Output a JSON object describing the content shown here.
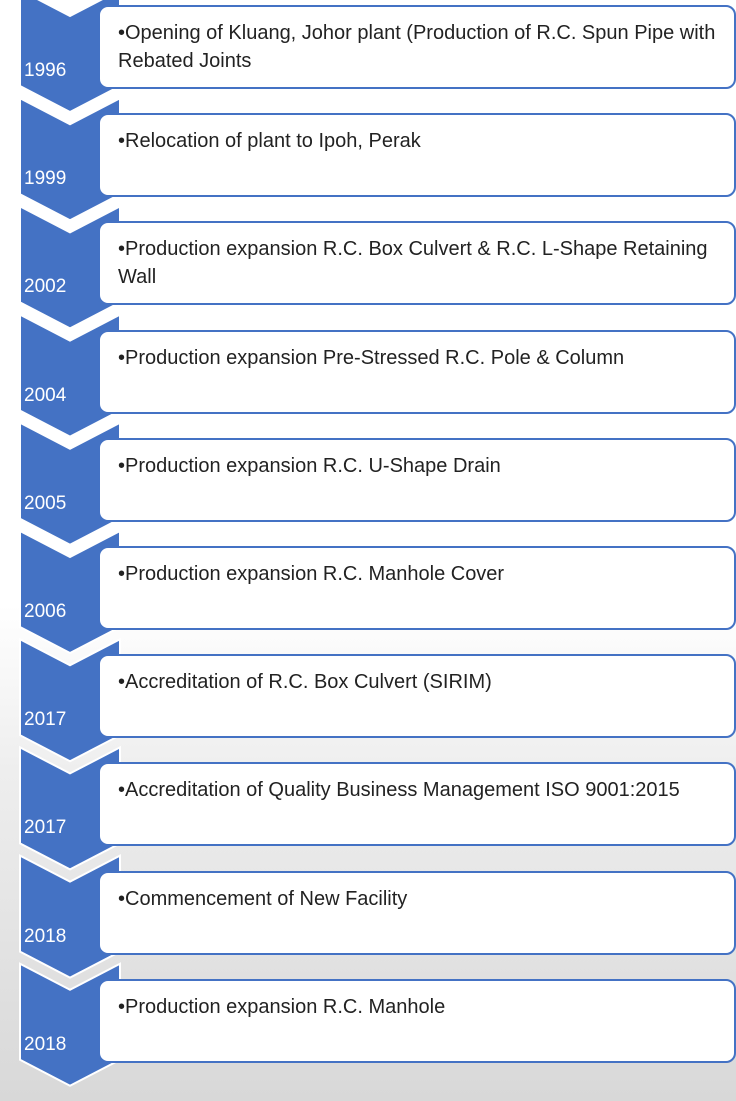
{
  "items": [
    {
      "year": "1996",
      "text": "•Opening of Kluang, Johor plant (Production of R.C. Spun Pipe with Rebated Joints"
    },
    {
      "year": "1999",
      "text": "•Relocation of plant to Ipoh, Perak"
    },
    {
      "year": "2002",
      "text": "•Production expansion R.C. Box Culvert & R.C. L-Shape Retaining Wall"
    },
    {
      "year": "2004",
      "text": "•Production expansion Pre-Stressed R.C. Pole & Column"
    },
    {
      "year": "2005",
      "text": "•Production expansion R.C. U-Shape Drain"
    },
    {
      "year": "2006",
      "text": "•Production expansion R.C. Manhole Cover"
    },
    {
      "year": "2017",
      "text": "•Accreditation of R.C. Box Culvert (SIRIM)"
    },
    {
      "year": "2017",
      "text": "•Accreditation of Quality Business Management ISO 9001:2015"
    },
    {
      "year": "2018",
      "text": "•Commencement of New Facility"
    },
    {
      "year": "2018",
      "text": "•Production expansion R.C. Manhole"
    }
  ]
}
